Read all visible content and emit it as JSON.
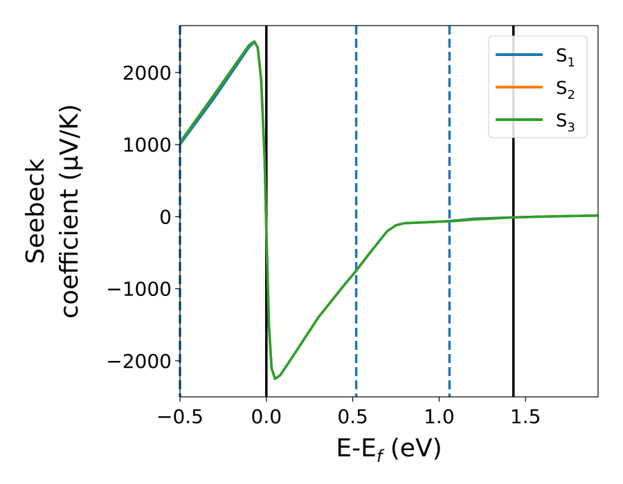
{
  "chart_data": {
    "type": "line",
    "xlabel": "E-E",
    "xlabel_sub": "f",
    "xlabel_unit": " (eV)",
    "ylabel_line1": "Seebeck",
    "ylabel_line2": "coefficient  (μV/K)",
    "xlim": [
      -0.5,
      1.92
    ],
    "ylim": [
      -2500,
      2650
    ],
    "xticks": [
      -0.5,
      0.0,
      0.5,
      1.0,
      1.5
    ],
    "xtick_labels": [
      "−0.5",
      "0.0",
      "0.5",
      "1.0",
      "1.5"
    ],
    "yticks": [
      -2000,
      -1000,
      0,
      1000,
      2000
    ],
    "ytick_labels": [
      "−2000",
      "−1000",
      "0",
      "1000",
      "2000"
    ],
    "grid": false,
    "legend_position": "top-right",
    "vlines": [
      {
        "x": -0.5,
        "style": "dashed",
        "color": "#1f77b4"
      },
      {
        "x": 0.0,
        "style": "solid",
        "color": "#000000"
      },
      {
        "x": 0.52,
        "style": "dashed",
        "color": "#1f77b4"
      },
      {
        "x": 1.06,
        "style": "dashed",
        "color": "#1f77b4"
      },
      {
        "x": 1.43,
        "style": "solid",
        "color": "#000000"
      }
    ],
    "series": [
      {
        "name": "S",
        "sub": "1",
        "color": "#1f77b4",
        "x": [
          -0.5,
          -0.3,
          -0.1,
          -0.07,
          -0.05,
          -0.03,
          -0.01,
          0.0,
          0.015,
          0.03,
          0.05,
          0.08,
          0.15,
          0.3,
          0.45,
          0.52,
          0.6,
          0.65,
          0.7,
          0.75,
          0.8,
          0.9,
          1.0,
          1.06,
          1.2,
          1.43,
          1.6,
          1.8,
          1.92
        ],
        "y": [
          1000,
          1650,
          2350,
          2420,
          2350,
          1900,
          800,
          -200,
          -1500,
          -2100,
          -2250,
          -2200,
          -1950,
          -1400,
          -950,
          -750,
          -500,
          -350,
          -200,
          -120,
          -90,
          -80,
          -70,
          -60,
          -30,
          -10,
          0,
          10,
          15
        ]
      },
      {
        "name": "S",
        "sub": "2",
        "color": "#ff7f0e",
        "x": [
          -0.5,
          -0.3,
          -0.1,
          -0.07,
          -0.05,
          -0.03,
          -0.01,
          0.0,
          0.015,
          0.03,
          0.05,
          0.08,
          0.15,
          0.3,
          0.45,
          0.52,
          0.6,
          0.65,
          0.7,
          0.75,
          0.8,
          0.9,
          1.0,
          1.06,
          1.2,
          1.43,
          1.6,
          1.8,
          1.92
        ],
        "y": [
          1030,
          1700,
          2380,
          2430,
          2350,
          1900,
          800,
          -200,
          -1500,
          -2100,
          -2250,
          -2200,
          -1950,
          -1400,
          -950,
          -750,
          -500,
          -350,
          -200,
          -120,
          -90,
          -80,
          -70,
          -65,
          -40,
          -10,
          0,
          10,
          15
        ]
      },
      {
        "name": "S",
        "sub": "3",
        "color": "#2ca02c",
        "x": [
          -0.5,
          -0.3,
          -0.1,
          -0.07,
          -0.05,
          -0.03,
          -0.01,
          0.0,
          0.015,
          0.03,
          0.05,
          0.08,
          0.15,
          0.3,
          0.45,
          0.52,
          0.6,
          0.65,
          0.7,
          0.75,
          0.8,
          0.9,
          1.0,
          1.06,
          1.2,
          1.43,
          1.6,
          1.8,
          1.92
        ],
        "y": [
          1030,
          1700,
          2380,
          2430,
          2350,
          1900,
          800,
          -200,
          -1500,
          -2100,
          -2250,
          -2200,
          -1950,
          -1400,
          -950,
          -750,
          -500,
          -350,
          -200,
          -120,
          -90,
          -80,
          -70,
          -65,
          -40,
          -10,
          0,
          10,
          15
        ]
      }
    ]
  }
}
